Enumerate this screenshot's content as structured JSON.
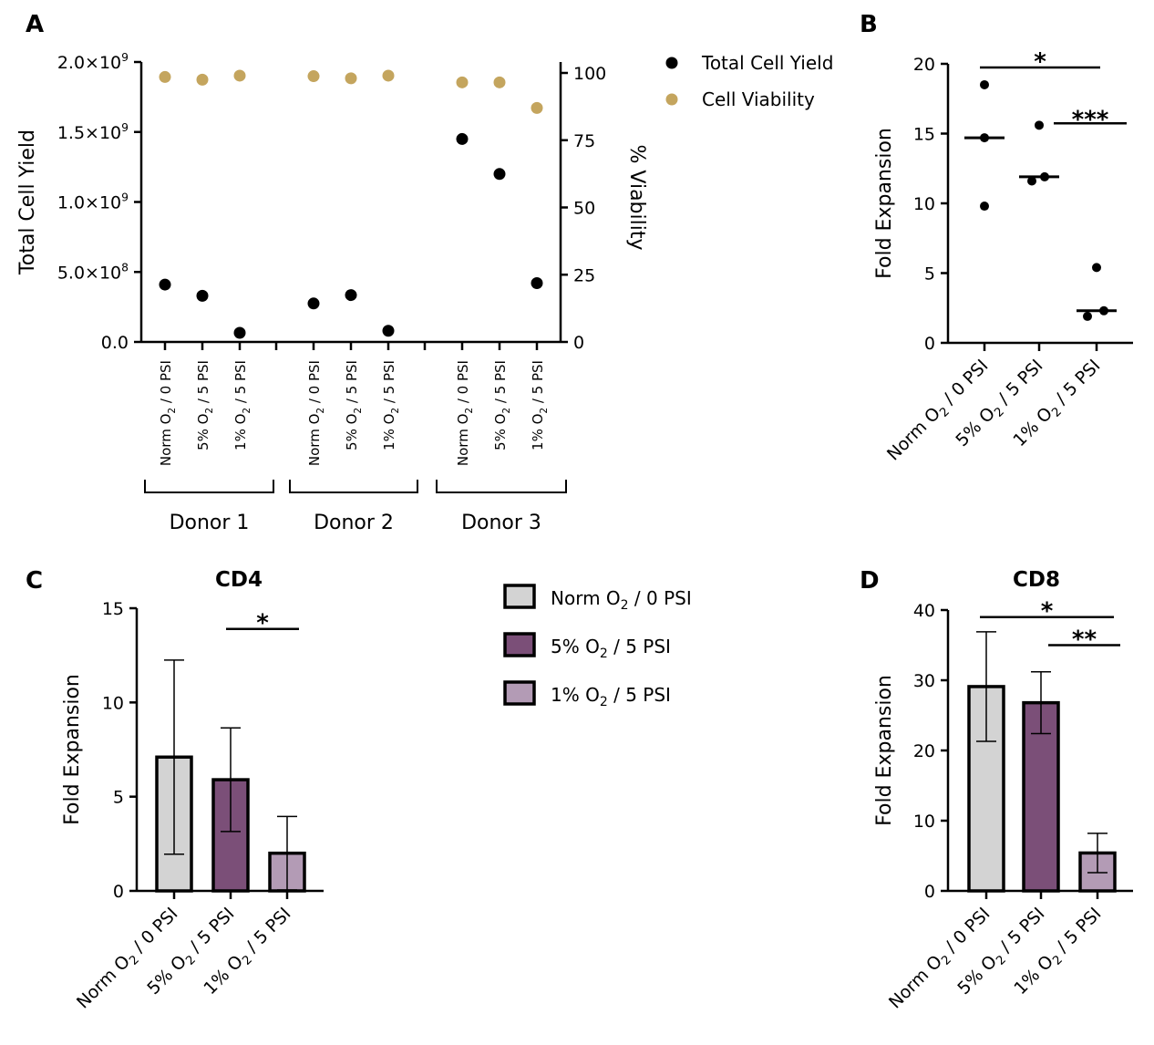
{
  "categories": [
    "Norm O₂ / 0 PSI",
    "5% O₂ / 5 PSI",
    "1% O₂ / 5 PSI"
  ],
  "colors": {
    "norm": "#d3d3d3",
    "o2_5": "#7b4f78",
    "o2_1": "#b39bb5",
    "viability": "#c4a55e",
    "yield": "#000000"
  },
  "chart_data": [
    {
      "panel": "A",
      "type": "scatter",
      "ylabel": "Total Cell Yield",
      "y2label": "% Viability",
      "ylim": [
        0,
        2000000000
      ],
      "y2lim": [
        0,
        105
      ],
      "yticks": [
        "0.0",
        "5.0×10⁸",
        "1.0×10⁹",
        "1.5×10⁹",
        "2.0×10⁹"
      ],
      "y2ticks": [
        "0",
        "25",
        "50",
        "75",
        "100"
      ],
      "groups": [
        "Donor 1",
        "Donor 2",
        "Donor 3"
      ],
      "legend": [
        "Total Cell Yield",
        "Cell Viability"
      ],
      "legend_position": "top-right",
      "series": [
        {
          "name": "Total Cell Yield",
          "axis": "left",
          "values": [
            410000000,
            330000000,
            65000000,
            275000000,
            335000000,
            80000000,
            1450000000,
            1200000000,
            420000000
          ]
        },
        {
          "name": "Cell Viability",
          "axis": "right",
          "values": [
            98.5,
            97.5,
            99,
            98.8,
            98,
            99,
            96.5,
            96.5,
            87
          ]
        }
      ]
    },
    {
      "panel": "B",
      "type": "scatter",
      "ylabel": "Fold Expansion",
      "ylim": [
        0,
        20
      ],
      "yticks": [
        "0",
        "5",
        "10",
        "15",
        "20"
      ],
      "points": [
        [
          18.5,
          14.7,
          9.8
        ],
        [
          15.6,
          11.6,
          11.9
        ],
        [
          5.4,
          1.9,
          2.3
        ]
      ],
      "medians": [
        14.7,
        11.9,
        2.3
      ],
      "significance": [
        {
          "from": 0,
          "to": 2,
          "label": "*",
          "y": 19.8
        },
        {
          "from": 1,
          "to": 2,
          "label": "***",
          "y": 15.8
        }
      ]
    },
    {
      "panel": "C",
      "type": "bar",
      "title": "CD4",
      "ylabel": "Fold  Expansion",
      "ylim": [
        0,
        15
      ],
      "yticks": [
        "0",
        "5",
        "10",
        "15"
      ],
      "values": [
        7.1,
        5.9,
        2.0
      ],
      "errors": [
        5.15,
        2.75,
        1.95
      ],
      "significance": [
        {
          "from": 1,
          "to": 2,
          "label": "*",
          "y": 13.9
        }
      ]
    },
    {
      "panel": "D",
      "type": "bar",
      "title": "CD8",
      "ylabel": "Fold Expansion",
      "ylim": [
        0,
        40
      ],
      "yticks": [
        "0",
        "10",
        "20",
        "30",
        "40"
      ],
      "values": [
        29.1,
        26.8,
        5.4
      ],
      "errors": [
        7.8,
        4.4,
        2.8
      ],
      "significance": [
        {
          "from": 0,
          "to": 2,
          "label": "*",
          "y": 39.0
        },
        {
          "from": 1,
          "to": 2,
          "label": "**",
          "y": 35.0
        }
      ]
    }
  ],
  "panel_letters": [
    "A",
    "B",
    "C",
    "D"
  ]
}
